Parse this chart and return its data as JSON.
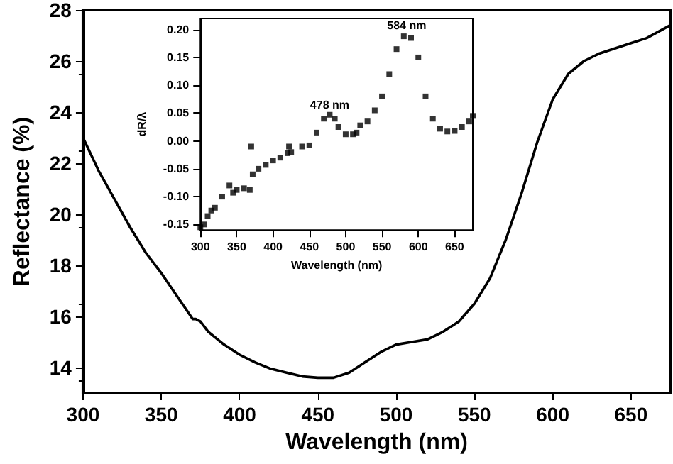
{
  "chart_data": [
    {
      "type": "line",
      "xlabel": "Wavelength (nm)",
      "ylabel": "Reflectance (%)",
      "xlim": [
        300,
        675
      ],
      "ylim": [
        13,
        28
      ],
      "xticks": [
        300,
        350,
        400,
        450,
        500,
        550,
        600,
        650
      ],
      "yticks": [
        14,
        16,
        18,
        20,
        22,
        24,
        26,
        28
      ],
      "grid": false,
      "marker": "none",
      "line_style": "solid",
      "x": [
        300,
        310,
        320,
        330,
        340,
        350,
        360,
        370,
        372,
        375,
        380,
        390,
        400,
        410,
        420,
        430,
        440,
        450,
        460,
        470,
        480,
        490,
        500,
        510,
        520,
        530,
        540,
        550,
        560,
        570,
        580,
        590,
        600,
        610,
        620,
        630,
        640,
        650,
        660,
        675
      ],
      "series": [
        {
          "color": "#000000",
          "values": [
            23.0,
            21.7,
            20.6,
            19.5,
            18.5,
            17.7,
            16.8,
            15.9,
            15.9,
            15.8,
            15.4,
            14.9,
            14.5,
            14.2,
            13.95,
            13.8,
            13.65,
            13.6,
            13.6,
            13.8,
            14.2,
            14.6,
            14.9,
            15.0,
            15.1,
            15.4,
            15.8,
            16.5,
            17.5,
            19.0,
            20.8,
            22.8,
            24.5,
            25.5,
            26.0,
            26.3,
            26.5,
            26.7,
            26.9,
            27.4
          ]
        }
      ]
    },
    {
      "type": "scatter",
      "xlabel": "Wavelength (nm)",
      "ylabel": "dR/λ",
      "xlim": [
        300,
        675
      ],
      "ylim": [
        -0.16,
        0.22
      ],
      "xticks": [
        300,
        350,
        400,
        450,
        500,
        550,
        600,
        650
      ],
      "yticks": [
        {
          "value": -0.15,
          "label": "-0.15"
        },
        {
          "value": -0.1,
          "label": "-0.10"
        },
        {
          "value": -0.05,
          "label": "-0.05"
        },
        {
          "value": 0,
          "label": "0.00"
        },
        {
          "value": 0.05,
          "label": "0.05"
        },
        {
          "value": 0.1,
          "label": "0.10"
        },
        {
          "value": 0.15,
          "label": "0.15"
        },
        {
          "value": 0.2,
          "label": "0.20"
        }
      ],
      "grid": false,
      "marker": "square",
      "annotations": [
        {
          "text": "478 nm",
          "x": 478,
          "y": 0.047
        },
        {
          "text": "584 nm",
          "x": 584,
          "y": 0.19
        }
      ],
      "x": [
        300,
        305,
        310,
        315,
        320,
        330,
        340,
        345,
        350,
        360,
        368,
        370,
        372,
        380,
        390,
        400,
        410,
        420,
        422,
        425,
        440,
        450,
        460,
        470,
        478,
        485,
        490,
        500,
        510,
        515,
        520,
        530,
        540,
        550,
        560,
        570,
        580,
        590,
        600,
        610,
        620,
        630,
        640,
        650,
        660,
        670,
        675
      ],
      "series": [
        {
          "color": "#000000",
          "values": [
            -0.155,
            -0.15,
            -0.135,
            -0.125,
            -0.12,
            -0.1,
            -0.08,
            -0.093,
            -0.088,
            -0.085,
            -0.088,
            -0.01,
            -0.06,
            -0.05,
            -0.043,
            -0.035,
            -0.03,
            -0.022,
            -0.01,
            -0.02,
            -0.01,
            -0.008,
            0.015,
            0.04,
            0.047,
            0.04,
            0.025,
            0.012,
            0.012,
            0.015,
            0.028,
            0.035,
            0.055,
            0.08,
            0.12,
            0.165,
            0.188,
            0.185,
            0.15,
            0.08,
            0.04,
            0.022,
            0.017,
            0.018,
            0.025,
            0.035,
            0.045
          ]
        }
      ]
    }
  ]
}
